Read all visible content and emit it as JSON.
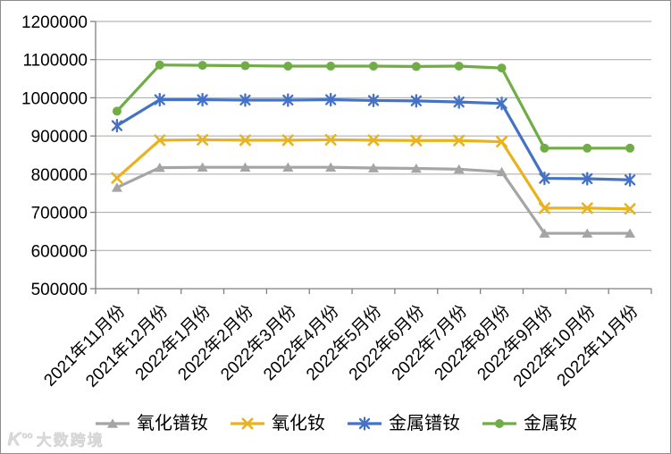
{
  "chart_data": {
    "type": "line",
    "title": "",
    "xlabel": "",
    "ylabel": "",
    "categories": [
      "2021年11月份",
      "2021年12月份",
      "2022年1月份",
      "2022年2月份",
      "2022年3月份",
      "2022年4月份",
      "2022年5月份",
      "2022年6月份",
      "2022年7月份",
      "2022年8月份",
      "2022年9月份",
      "2022年10月份",
      "2022年11月份"
    ],
    "series": [
      {
        "name": "氧化镨钕",
        "marker": "triangle",
        "color": "#A5A5A5",
        "values": [
          765000,
          817000,
          818000,
          818000,
          818000,
          818000,
          816000,
          815000,
          813000,
          806000,
          645000,
          645000,
          645000
        ]
      },
      {
        "name": "氧化钕",
        "marker": "x",
        "color": "#E9B21F",
        "values": [
          790000,
          889000,
          890000,
          889000,
          889000,
          890000,
          889000,
          888000,
          888000,
          885000,
          711000,
          711000,
          709000
        ]
      },
      {
        "name": "金属镨钕",
        "marker": "asterisk",
        "color": "#4472C4",
        "values": [
          927000,
          995000,
          995000,
          994000,
          994000,
          995000,
          993000,
          992000,
          989000,
          985000,
          789000,
          788000,
          785000
        ]
      },
      {
        "name": "金属钕",
        "marker": "circle",
        "color": "#70AD47",
        "values": [
          965000,
          1086000,
          1085000,
          1084000,
          1083000,
          1083000,
          1083000,
          1082000,
          1083000,
          1078000,
          868000,
          868000,
          868000
        ]
      }
    ],
    "ylim": [
      500000,
      1200000
    ],
    "yticks": [
      500000,
      600000,
      700000,
      800000,
      900000,
      1000000,
      1100000,
      1200000
    ],
    "grid": true,
    "legend_position": "bottom",
    "gridline_color": "#A6A6A6",
    "axis_color": "#808080",
    "label_color": "#000000"
  },
  "watermark": {
    "logo": "K",
    "logo_sup": "oo",
    "text": "大数跨境"
  }
}
